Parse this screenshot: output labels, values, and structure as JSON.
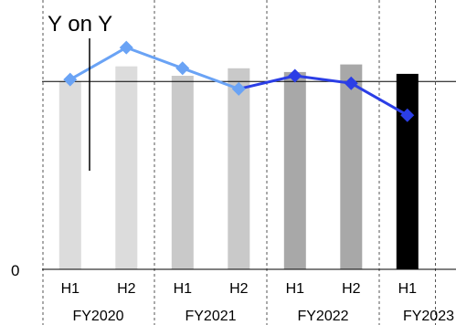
{
  "chart_data": {
    "type": "bar",
    "annotation": "Y on Y",
    "y_zero_label": "0",
    "categories": [
      "H1",
      "H2",
      "H1",
      "H2",
      "H1",
      "H2",
      "H1"
    ],
    "groups": [
      {
        "label": "FY2020",
        "span": [
          0,
          1
        ]
      },
      {
        "label": "FY2021",
        "span": [
          2,
          3
        ]
      },
      {
        "label": "FY2022",
        "span": [
          4,
          5
        ]
      },
      {
        "label": "FY2023",
        "span": [
          6,
          6
        ]
      }
    ],
    "series": [
      {
        "type": "bar",
        "values": [
          100,
          108,
          103,
          107,
          105,
          109,
          104
        ]
      },
      {
        "type": "line",
        "values": [
          101,
          118,
          107,
          96,
          103,
          99,
          82
        ]
      }
    ],
    "bar_colors": [
      "#dcdcdc",
      "#dcdcdc",
      "#c9c9c9",
      "#c9c9c9",
      "#a8a8a8",
      "#a8a8a8",
      "#000000"
    ],
    "line_colors": [
      "#6aa3f5",
      "#6aa3f5",
      "#6aa3f5",
      "#6aa3f5",
      "#2b3ee6",
      "#2b3ee6",
      "#2b3ee6"
    ],
    "marker": "diamond",
    "reference_line_value": 100,
    "ylim": [
      0,
      120
    ]
  }
}
